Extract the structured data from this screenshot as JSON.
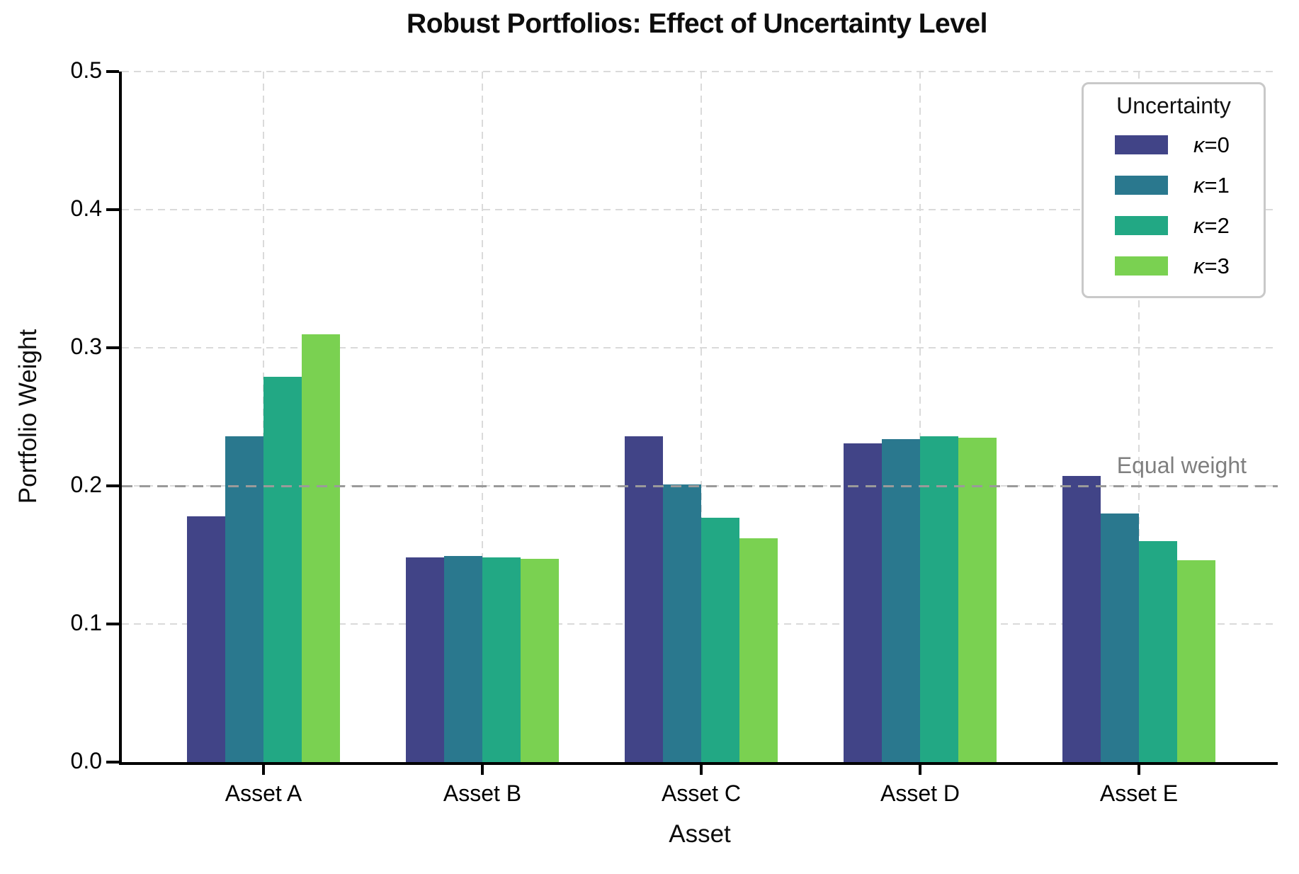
{
  "title": "Robust Portfolios: Effect of Uncertainty Level",
  "colors": {
    "series": [
      "#414487",
      "#2a788e",
      "#22a884",
      "#7ad151"
    ],
    "equal_weight_line": "#9a9a9a",
    "equal_weight_label": "#7f7f7f",
    "grid": "#dadada",
    "axis": "#000000",
    "legend_border": "#c9c9c9"
  },
  "chart_data": {
    "type": "bar",
    "title": "Robust Portfolios: Effect of Uncertainty Level",
    "xlabel": "Asset",
    "ylabel": "Portfolio Weight",
    "categories": [
      "Asset A",
      "Asset B",
      "Asset C",
      "Asset D",
      "Asset E"
    ],
    "series": [
      {
        "name": "κ=0",
        "color": "#414487",
        "values": [
          0.178,
          0.148,
          0.236,
          0.231,
          0.207
        ]
      },
      {
        "name": "κ=1",
        "color": "#2a788e",
        "values": [
          0.236,
          0.149,
          0.201,
          0.234,
          0.18
        ]
      },
      {
        "name": "κ=2",
        "color": "#22a884",
        "values": [
          0.279,
          0.148,
          0.177,
          0.236,
          0.16
        ]
      },
      {
        "name": "κ=3",
        "color": "#7ad151",
        "values": [
          0.31,
          0.147,
          0.162,
          0.235,
          0.146
        ]
      }
    ],
    "ylim": [
      0,
      0.5
    ],
    "yticks": [
      {
        "value": 0.0,
        "label": "0.0"
      },
      {
        "value": 0.1,
        "label": "0.1"
      },
      {
        "value": 0.2,
        "label": "0.2"
      },
      {
        "value": 0.3,
        "label": "0.3"
      },
      {
        "value": 0.4,
        "label": "0.4"
      },
      {
        "value": 0.5,
        "label": "0.5"
      }
    ],
    "grid": true,
    "legend_title": "Uncertainty",
    "legend_position": "upper right",
    "reference_line": {
      "value": 0.2,
      "label": "Equal weight"
    }
  }
}
